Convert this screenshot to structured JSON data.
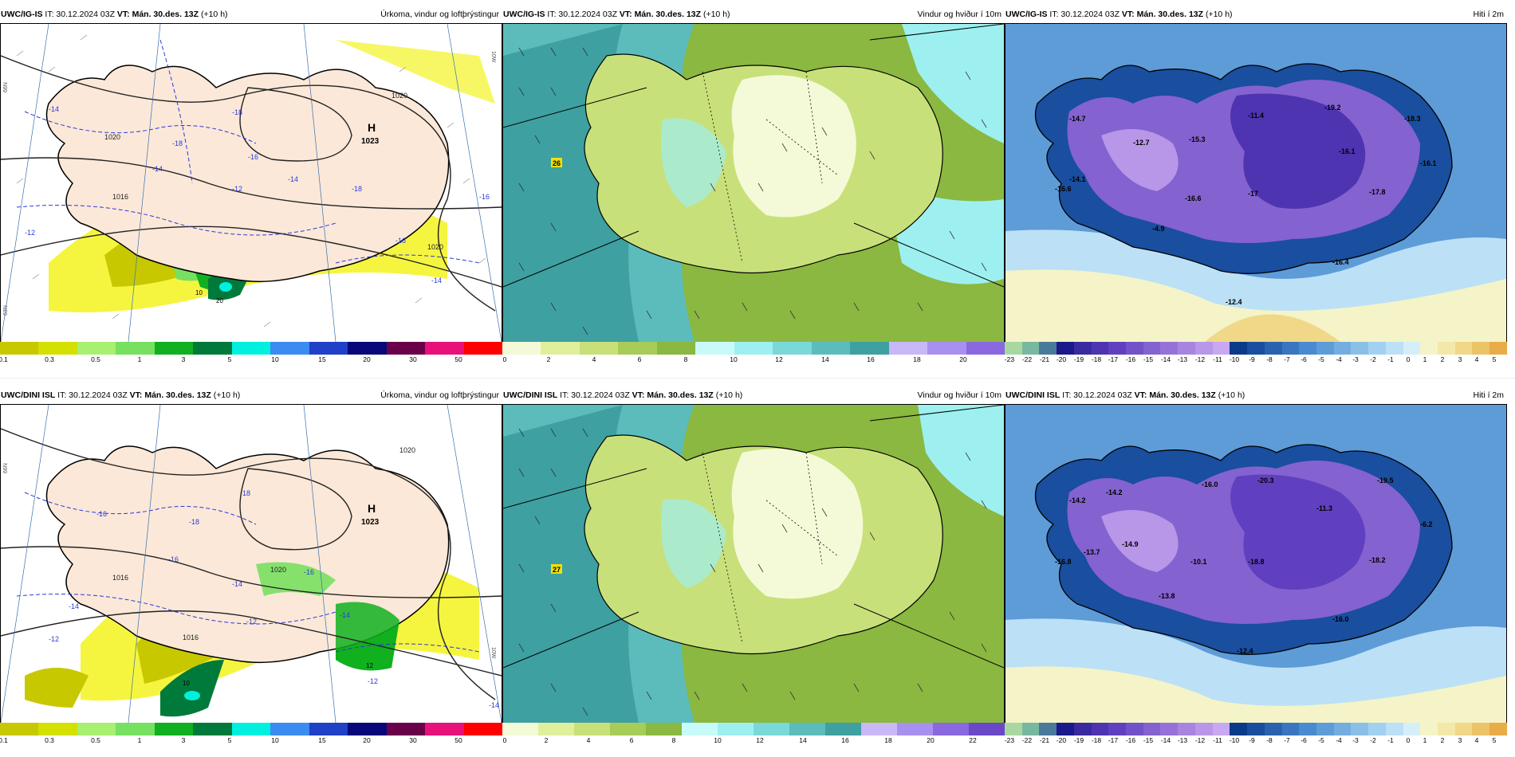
{
  "rows": [
    {
      "model": "UWC/IG-IS",
      "precip": {
        "it": "IT: 30.12.2024 03Z",
        "vt_label": "VT:",
        "vt": "Mán. 30.des. 13Z",
        "lead": "(+10 h)",
        "title": "Úrkoma, vindur og loftþrýstingur"
      },
      "wind": {
        "it": "IT: 30.12.2024 03Z",
        "vt_label": "VT:",
        "vt": "Mán. 30.des. 13Z",
        "lead": "(+10 h)",
        "title": "Vindur og hviður í 10m"
      },
      "temp": {
        "it": "IT: 30.12.2024 03Z",
        "vt_label": "VT:",
        "vt": "Mán. 30.des. 13Z",
        "lead": "(+10 h)",
        "title": "Hiti í 2m"
      },
      "pressure_high": {
        "symbol": "H",
        "value": "1023"
      },
      "isobars": [
        "1020",
        "1020",
        "1016",
        "1020"
      ],
      "temp_labels": [
        "-18",
        "-18",
        "-16",
        "-14",
        "-14",
        "-12",
        "-18",
        "-16",
        "-14",
        "-16",
        "-12",
        "-14"
      ],
      "precip_labels": [
        "10",
        "20"
      ],
      "gust_label": "26",
      "temp_values": [
        "-14.7",
        "-12.7",
        "-15.3",
        "-11.4",
        "-19.2",
        "-18.3",
        "-16.1",
        "-16.1",
        "-14.1",
        "-16.6",
        "-16.6",
        "-17",
        "-17.8",
        "-4.9",
        "-16.4",
        "-12.4"
      ]
    },
    {
      "model": "UWC/DINI ISL",
      "precip": {
        "it": "IT: 30.12.2024 03Z",
        "vt_label": "VT:",
        "vt": "Mán. 30.des. 13Z",
        "lead": "(+10 h)",
        "title": "Úrkoma, vindur og loftþrýstingur"
      },
      "wind": {
        "it": "IT: 30.12.2024 03Z",
        "vt_label": "VT:",
        "vt": "Mán. 30.des. 13Z",
        "lead": "(+10 h)",
        "title": "Vindur og hviður í 10m"
      },
      "temp": {
        "it": "IT: 30.12.2024 03Z",
        "vt_label": "VT:",
        "vt": "Mán. 30.des. 13Z",
        "lead": "(+10 h)",
        "title": "Hiti í 2m"
      },
      "pressure_high": {
        "symbol": "H",
        "value": "1023"
      },
      "isobars": [
        "1020",
        "1016",
        "1016",
        "1020"
      ],
      "temp_labels": [
        "-18",
        "-18",
        "-16",
        "-16",
        "-14",
        "-12",
        "-14",
        "-16",
        "-14",
        "-12",
        "-12",
        "-14"
      ],
      "precip_labels": [
        "10",
        "12"
      ],
      "gust_label": "27",
      "temp_values": [
        "-14.2",
        "-14.2",
        "-16.0",
        "-20.3",
        "-19.5",
        "-11.3",
        "-6.2",
        "-14.9",
        "-13.7",
        "-10.1",
        "-18.8",
        "-16.8",
        "-18.2",
        "-13.8",
        "-16.0",
        "-12.4"
      ]
    }
  ],
  "precip_scale": {
    "ticks": [
      "0.1",
      "0.3",
      "0.5",
      "1",
      "3",
      "5",
      "10",
      "15",
      "20",
      "30",
      "50"
    ],
    "colors": [
      "#c8c800",
      "#d4e000",
      "#a8f070",
      "#78e060",
      "#10b020",
      "#007a3a",
      "#00f0e0",
      "#3a8cf0",
      "#2040c8",
      "#08087a",
      "#6a004a",
      "#e8107a",
      "#ff0000"
    ]
  },
  "wind_scale_top": {
    "ticks": [
      "0",
      "2",
      "4",
      "6",
      "8",
      "10",
      "12",
      "14",
      "16",
      "18",
      "20"
    ],
    "colors": [
      "#f4fad8",
      "#e0ef9c",
      "#c8e07a",
      "#a8cc58",
      "#8ab840",
      "#c8fafa",
      "#9ef0f0",
      "#7ad8d8",
      "#5cbcbc",
      "#3ea0a0",
      "#c8b8f8",
      "#a890f0",
      "#8a68e0"
    ]
  },
  "wind_scale_bottom": {
    "ticks": [
      "0",
      "2",
      "4",
      "6",
      "8",
      "10",
      "12",
      "14",
      "16",
      "18",
      "20",
      "22"
    ],
    "colors": [
      "#f4fad8",
      "#e0ef9c",
      "#c8e07a",
      "#a8cc58",
      "#8ab840",
      "#c8fafa",
      "#9ef0f0",
      "#7ad8d8",
      "#5cbcbc",
      "#3ea0a0",
      "#c8b8f8",
      "#a890f0",
      "#8a68e0",
      "#6a48c8"
    ]
  },
  "temp_scale": {
    "ticks": [
      "-23",
      "-22",
      "-21",
      "-20",
      "-19",
      "-18",
      "-17",
      "-16",
      "-15",
      "-14",
      "-13",
      "-12",
      "-11",
      "-10",
      "-9",
      "-8",
      "-7",
      "-6",
      "-5",
      "-4",
      "-3",
      "-2",
      "-1",
      "0",
      "1",
      "2",
      "3",
      "4",
      "5"
    ],
    "colors": [
      "#a8d8a0",
      "#78b8a0",
      "#4a7a9a",
      "#1a1a8a",
      "#3a2aa0",
      "#4e34b0",
      "#6040c0",
      "#7252c8",
      "#8462d0",
      "#9672d8",
      "#a884e0",
      "#b896e8",
      "#c8a8f0",
      "#0a3a8a",
      "#1a4e9e",
      "#2a62b0",
      "#3a76c0",
      "#4a8ad0",
      "#5e9cd8",
      "#74aee0",
      "#8ac0e8",
      "#a2d0f0",
      "#bce0f6",
      "#d6eefa",
      "#f4f4c8",
      "#f4e8a8",
      "#f0d888",
      "#ecc468",
      "#e8ac48"
    ]
  },
  "lat_labels": [
    "66N",
    "63N"
  ],
  "lon_labels": [
    "25W",
    "10W"
  ]
}
